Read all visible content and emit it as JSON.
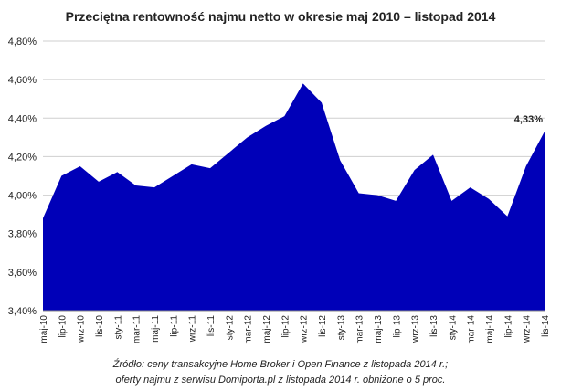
{
  "chart_data": {
    "type": "area",
    "title": "Przeciętna rentowność najmu netto w okresie maj 2010 – listopad 2014",
    "xlabel": "",
    "ylabel": "",
    "ylim": [
      3.4,
      4.8
    ],
    "yticks": [
      "3,40%",
      "3,60%",
      "3,80%",
      "4,00%",
      "4,20%",
      "4,40%",
      "4,60%",
      "4,80%"
    ],
    "ytick_values": [
      3.4,
      3.6,
      3.8,
      4.0,
      4.2,
      4.4,
      4.6,
      4.8
    ],
    "categories": [
      "maj-10",
      "lip-10",
      "wrz-10",
      "lis-10",
      "sty-11",
      "mar-11",
      "maj-11",
      "lip-11",
      "wrz-11",
      "lis-11",
      "sty-12",
      "mar-12",
      "maj-12",
      "lip-12",
      "wrz-12",
      "lis-12",
      "sty-13",
      "mar-13",
      "maj-13",
      "lip-13",
      "wrz-13",
      "lis-13",
      "sty-14",
      "mar-14",
      "maj-14",
      "lip-14",
      "wrz-14",
      "lis-14"
    ],
    "values": [
      3.88,
      4.1,
      4.15,
      4.07,
      4.12,
      4.05,
      4.04,
      4.1,
      4.16,
      4.14,
      4.22,
      4.3,
      4.36,
      4.41,
      4.58,
      4.48,
      4.18,
      4.01,
      4.0,
      3.97,
      4.13,
      4.21,
      3.97,
      4.04,
      3.98,
      3.89,
      4.15,
      4.33
    ],
    "data_label": {
      "index": 27,
      "text": "4,33%"
    },
    "grid": true,
    "fill_color": "#0000b8",
    "grid_color": "#cfcfcf"
  },
  "source": {
    "line1": "Źródło: ceny transakcyjne Home Broker i Open Finance z listopada 2014 r.;",
    "line2": "oferty najmu z serwisu Domiporta.pl z listopada 2014 r. obniżone o 5 proc."
  }
}
